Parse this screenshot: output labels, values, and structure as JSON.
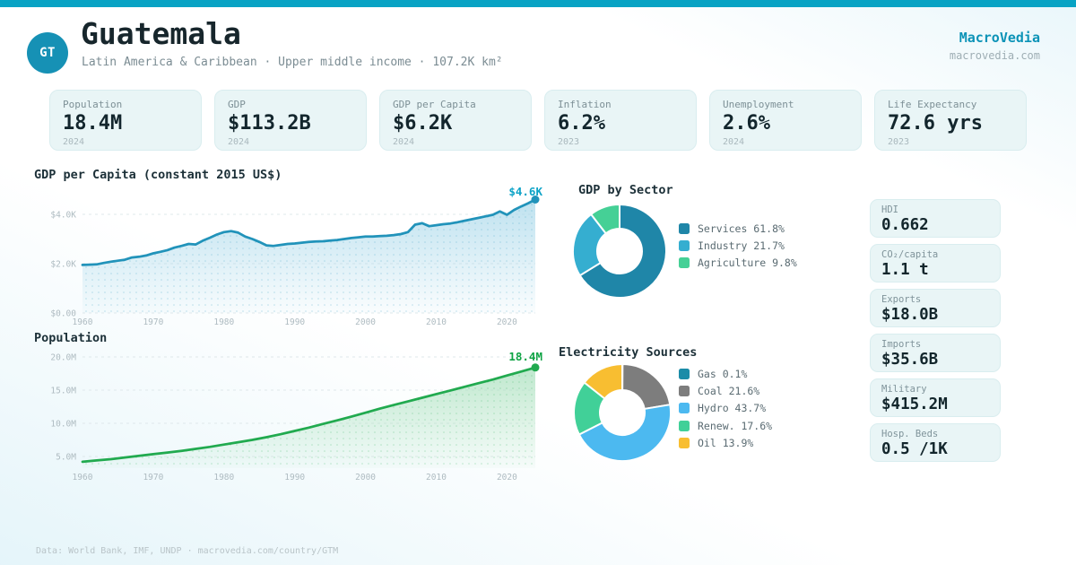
{
  "brand": {
    "name": "MacroVedia",
    "domain": "macrovedia.com"
  },
  "header": {
    "badge": "GT",
    "title": "Guatemala",
    "subtitle": "Latin America & Caribbean · Upper middle income · 107.2K km²"
  },
  "stat_cards": [
    {
      "label": "Population",
      "value": "18.4M",
      "year": "2024"
    },
    {
      "label": "GDP",
      "value": "$113.2B",
      "year": "2024"
    },
    {
      "label": "GDP per Capita",
      "value": "$6.2K",
      "year": "2024"
    },
    {
      "label": "Inflation",
      "value": "6.2%",
      "year": "2023"
    },
    {
      "label": "Unemployment",
      "value": "2.6%",
      "year": "2024"
    },
    {
      "label": "Life Expectancy",
      "value": "72.6 yrs",
      "year": "2023"
    }
  ],
  "side_cards": [
    {
      "label": "HDI",
      "value": "0.662"
    },
    {
      "label": "CO₂/capita",
      "value": "1.1 t"
    },
    {
      "label": "Exports",
      "value": "$18.0B"
    },
    {
      "label": "Imports",
      "value": "$35.6B"
    },
    {
      "label": "Military",
      "value": "$415.2M"
    },
    {
      "label": "Hosp. Beds",
      "value": "0.5 /1K"
    }
  ],
  "footer": {
    "text": "Data: World Bank, IMF, UNDP · macrovedia.com/country/GTM"
  },
  "chart_data": [
    {
      "type": "line",
      "title": "GDP per Capita (constant 2015 US$)",
      "color": "#2193ba",
      "fill": "#a9d8ea",
      "label_color": "#0da3c7",
      "end_label": "$4.6K",
      "unit": "thousand constant 2015 US$",
      "ylim": [
        0,
        5
      ],
      "yticks": [
        {
          "v": 0,
          "label": "$0.00"
        },
        {
          "v": 2,
          "label": "$2.0K"
        },
        {
          "v": 4,
          "label": "$4.0K"
        }
      ],
      "xticks": [
        1960,
        1970,
        1980,
        1990,
        2000,
        2010,
        2020
      ],
      "x": [
        1960,
        1961,
        1962,
        1963,
        1964,
        1965,
        1966,
        1967,
        1968,
        1969,
        1970,
        1971,
        1972,
        1973,
        1974,
        1975,
        1976,
        1977,
        1978,
        1979,
        1980,
        1981,
        1982,
        1983,
        1984,
        1985,
        1986,
        1987,
        1988,
        1989,
        1990,
        1991,
        1992,
        1993,
        1994,
        1995,
        1996,
        1997,
        1998,
        1999,
        2000,
        2001,
        2002,
        2003,
        2004,
        2005,
        2006,
        2007,
        2008,
        2009,
        2010,
        2011,
        2012,
        2013,
        2014,
        2015,
        2016,
        2017,
        2018,
        2019,
        2020,
        2021,
        2022,
        2023,
        2024
      ],
      "y": [
        1.95,
        1.96,
        1.97,
        2.03,
        2.08,
        2.12,
        2.16,
        2.25,
        2.28,
        2.33,
        2.42,
        2.48,
        2.55,
        2.65,
        2.72,
        2.8,
        2.78,
        2.93,
        3.05,
        3.18,
        3.28,
        3.32,
        3.26,
        3.1,
        3.0,
        2.88,
        2.74,
        2.72,
        2.76,
        2.8,
        2.82,
        2.85,
        2.88,
        2.9,
        2.91,
        2.94,
        2.96,
        3.0,
        3.04,
        3.07,
        3.1,
        3.1,
        3.12,
        3.13,
        3.16,
        3.2,
        3.28,
        3.58,
        3.64,
        3.52,
        3.56,
        3.6,
        3.63,
        3.68,
        3.74,
        3.8,
        3.86,
        3.92,
        3.98,
        4.12,
        3.98,
        4.18,
        4.32,
        4.45,
        4.6
      ]
    },
    {
      "type": "line",
      "title": "Population",
      "color": "#21aa4f",
      "fill": "#a9e0bd",
      "label_color": "#0ea344",
      "end_label": "18.4M",
      "unit": "million people",
      "ylim": [
        0,
        21
      ],
      "yticks": [
        {
          "v": 5,
          "label": "5.0M"
        },
        {
          "v": 10,
          "label": "10.0M"
        },
        {
          "v": 15,
          "label": "15.0M"
        },
        {
          "v": 20,
          "label": "20.0M"
        }
      ],
      "xticks": [
        1960,
        1970,
        1980,
        1990,
        2000,
        2010,
        2020
      ],
      "x": [
        1960,
        1962,
        1964,
        1966,
        1968,
        1970,
        1972,
        1974,
        1976,
        1978,
        1980,
        1982,
        1984,
        1986,
        1988,
        1990,
        1992,
        1994,
        1996,
        1998,
        2000,
        2002,
        2004,
        2006,
        2008,
        2010,
        2012,
        2014,
        2016,
        2018,
        2020,
        2022,
        2024
      ],
      "y": [
        4.2,
        4.4,
        4.6,
        4.85,
        5.1,
        5.35,
        5.6,
        5.85,
        6.15,
        6.45,
        6.8,
        7.15,
        7.5,
        7.9,
        8.35,
        8.85,
        9.35,
        9.9,
        10.45,
        11.0,
        11.6,
        12.2,
        12.75,
        13.3,
        13.85,
        14.4,
        14.95,
        15.5,
        16.05,
        16.6,
        17.2,
        17.8,
        18.4
      ]
    },
    {
      "type": "donut",
      "title": "GDP by Sector",
      "legend_position": "right",
      "segments": [
        {
          "label": "Services",
          "pct": 61.8,
          "color": "#1f86a8"
        },
        {
          "label": "Industry",
          "pct": 21.7,
          "color": "#35aed0"
        },
        {
          "label": "Agriculture",
          "pct": 9.8,
          "color": "#45d096"
        }
      ]
    },
    {
      "type": "donut",
      "title": "Electricity Sources",
      "legend_position": "right",
      "segments": [
        {
          "label": "Gas",
          "pct": 0.1,
          "color": "#1b8ca8"
        },
        {
          "label": "Coal",
          "pct": 21.6,
          "color": "#7d7d7d"
        },
        {
          "label": "Hydro",
          "pct": 43.7,
          "color": "#4cb9f0"
        },
        {
          "label": "Renew.",
          "pct": 17.6,
          "color": "#41d098"
        },
        {
          "label": "Oil",
          "pct": 13.9,
          "color": "#f8be31"
        }
      ]
    }
  ]
}
